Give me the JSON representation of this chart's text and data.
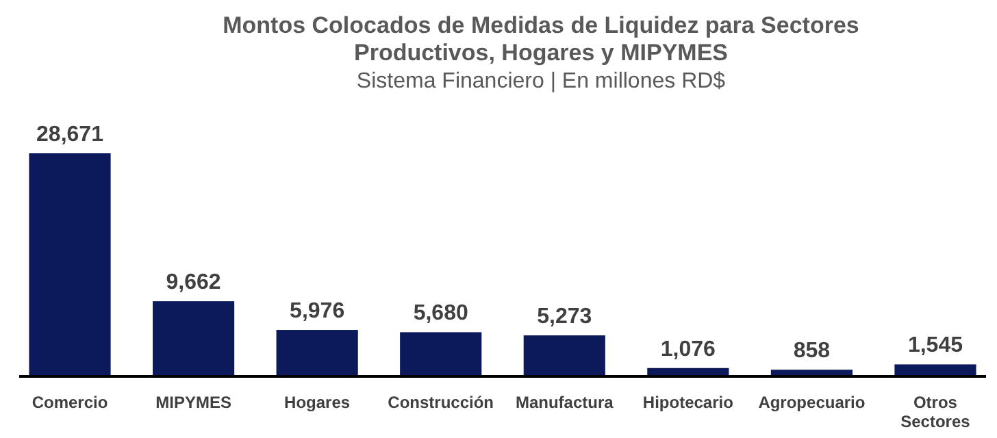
{
  "chart_data": {
    "type": "bar",
    "title": "Montos Colocados de Medidas de Liquidez para Sectores Productivos, Hogares y MIPYMES",
    "subtitle": "Sistema Financiero | En millones RD$",
    "categories": [
      "Comercio",
      "MIPYMES",
      "Hogares",
      "Construcción",
      "Manufactura",
      "Hipotecario",
      "Agropecuario",
      "Otros Sectores"
    ],
    "values": [
      28671,
      9662,
      5976,
      5680,
      5273,
      1076,
      858,
      1545
    ],
    "value_labels": [
      "28,671",
      "9,662",
      "5,976",
      "5,680",
      "5,273",
      "1,076",
      "858",
      "1,545"
    ],
    "color": "#0c1a5b"
  }
}
